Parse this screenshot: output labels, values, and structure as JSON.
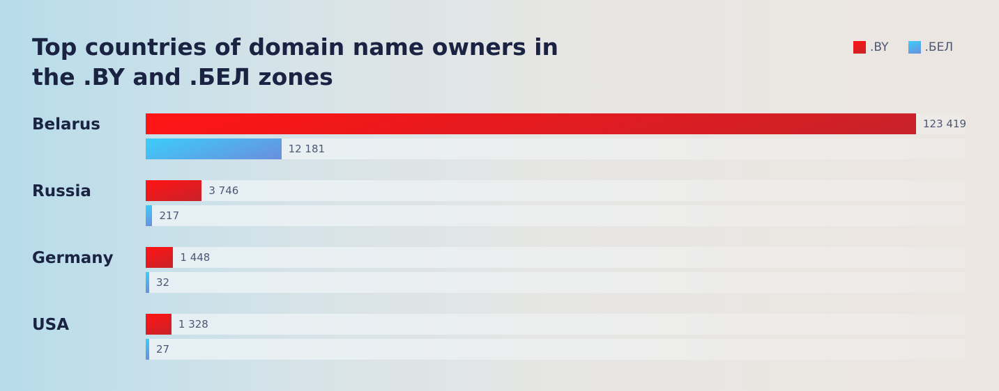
{
  "chart_data": {
    "type": "bar",
    "orientation": "horizontal",
    "title": "Top countries of domain name owners in the .BY and .БЕЛ zones",
    "categories": [
      "Belarus",
      "Russia",
      "Germany",
      "USA"
    ],
    "series": [
      {
        "name": ".BY",
        "values": [
          123419,
          3746,
          1448,
          1328
        ],
        "labels": [
          "123 419",
          "3 746",
          "1 448",
          "1 328"
        ],
        "color": "#ff1414"
      },
      {
        "name": ".БЕЛ",
        "values": [
          12181,
          217,
          32,
          27
        ],
        "labels": [
          "12 181",
          "217",
          "32",
          "27"
        ],
        "color": "#3ccdfb"
      }
    ],
    "legend": "top-right",
    "grid": false
  }
}
